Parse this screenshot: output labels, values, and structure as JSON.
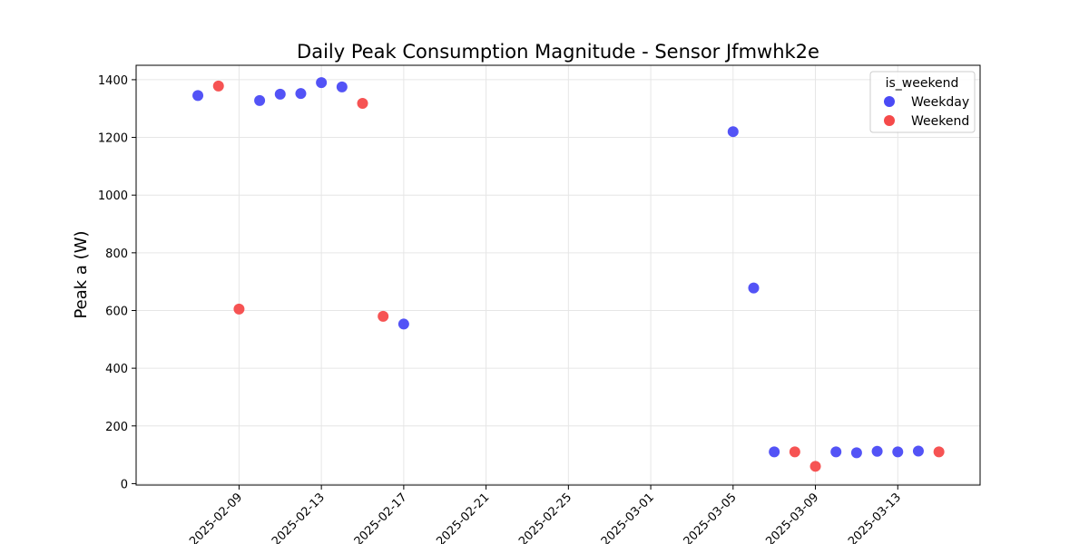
{
  "chart_data": {
    "type": "scatter",
    "title": "Daily Peak Consumption Magnitude - Sensor Jfmwhk2e",
    "xlabel": "",
    "ylabel": "Peak a (W)",
    "xlim": [
      "2025-02-04",
      "2025-03-17"
    ],
    "ylim": [
      -5,
      1450
    ],
    "x_ticks": [
      "2025-02-09",
      "2025-02-13",
      "2025-02-17",
      "2025-02-21",
      "2025-02-25",
      "2025-03-01",
      "2025-03-05",
      "2025-03-09",
      "2025-03-13"
    ],
    "y_ticks": [
      0,
      200,
      400,
      600,
      800,
      1000,
      1200,
      1400
    ],
    "grid": true,
    "legend": {
      "title": "is_weekend",
      "position": "top-right"
    },
    "series": [
      {
        "name": "Weekday",
        "color": "#4a4af5",
        "points": [
          {
            "x": "2025-02-07",
            "y": 1345
          },
          {
            "x": "2025-02-10",
            "y": 1328
          },
          {
            "x": "2025-02-11",
            "y": 1350
          },
          {
            "x": "2025-02-12",
            "y": 1352
          },
          {
            "x": "2025-02-13",
            "y": 1390
          },
          {
            "x": "2025-02-14",
            "y": 1375
          },
          {
            "x": "2025-02-17",
            "y": 553
          },
          {
            "x": "2025-03-05",
            "y": 1220
          },
          {
            "x": "2025-03-06",
            "y": 678
          },
          {
            "x": "2025-03-07",
            "y": 110
          },
          {
            "x": "2025-03-10",
            "y": 110
          },
          {
            "x": "2025-03-11",
            "y": 107
          },
          {
            "x": "2025-03-12",
            "y": 112
          },
          {
            "x": "2025-03-13",
            "y": 110
          },
          {
            "x": "2025-03-14",
            "y": 113
          }
        ]
      },
      {
        "name": "Weekend",
        "color": "#f54a4a",
        "points": [
          {
            "x": "2025-02-08",
            "y": 1378
          },
          {
            "x": "2025-02-09",
            "y": 605
          },
          {
            "x": "2025-02-15",
            "y": 1318
          },
          {
            "x": "2025-02-16",
            "y": 580
          },
          {
            "x": "2025-03-08",
            "y": 110
          },
          {
            "x": "2025-03-09",
            "y": 60
          },
          {
            "x": "2025-03-15",
            "y": 110
          }
        ]
      }
    ]
  }
}
